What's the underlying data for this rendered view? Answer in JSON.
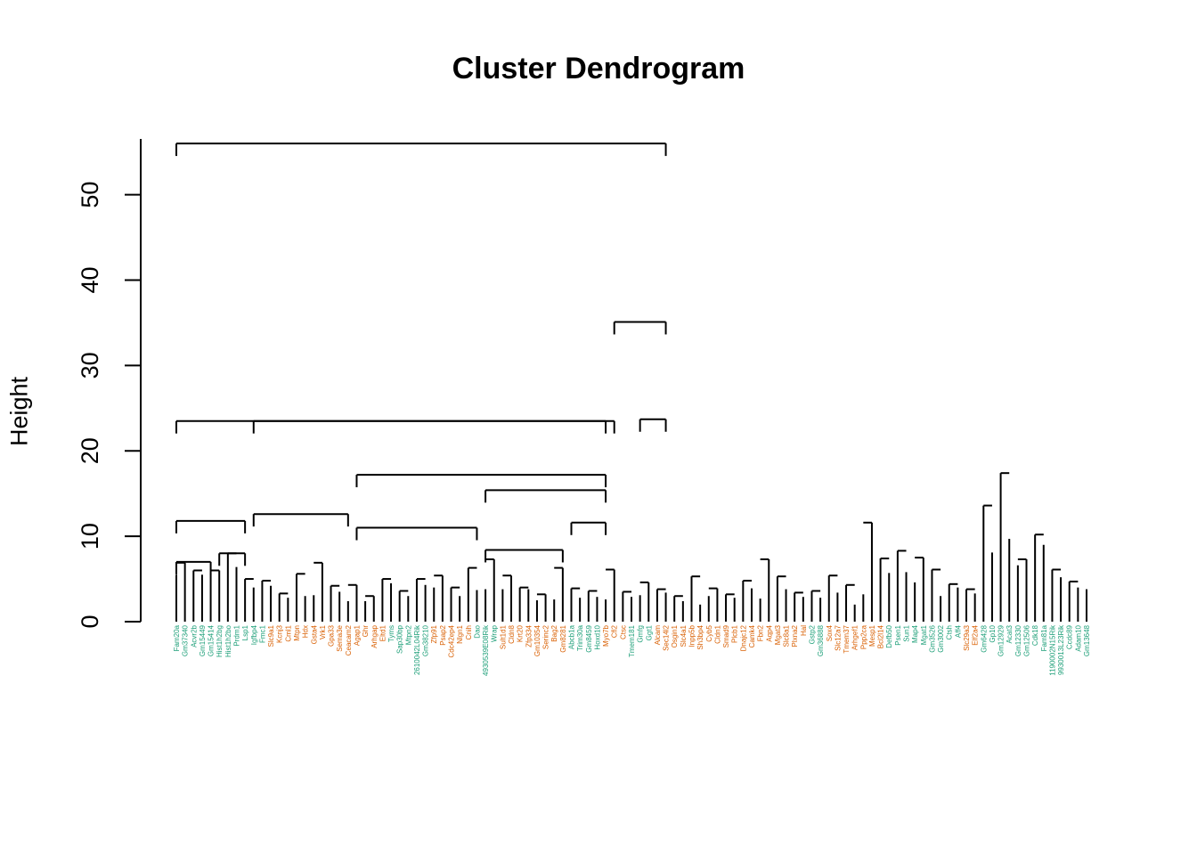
{
  "chart_data": {
    "type": "dendrogram",
    "title": "Cluster Dendrogram",
    "ylabel": "Height",
    "ylim": [
      0,
      56
    ],
    "yticks": [
      0,
      10,
      20,
      30,
      40,
      50
    ],
    "colors": {
      "teal": "#1b9e77",
      "orange": "#d95f02",
      "line": "#000000"
    },
    "merges": [
      {
        "from": [
          1,
          9
        ],
        "height": 11.8
      },
      {
        "from": [
          1,
          5
        ],
        "height": 7.0
      },
      {
        "from": [
          6,
          9
        ],
        "height": 8.0
      },
      {
        "from": [
          10,
          51
        ],
        "height": 23.5
      },
      {
        "from": [
          10,
          21
        ],
        "height": 12.6
      },
      {
        "from": [
          22,
          51
        ],
        "height": 17.2
      },
      {
        "from": [
          22,
          36
        ],
        "height": 11.0
      },
      {
        "from": [
          37,
          51
        ],
        "height": 15.4
      },
      {
        "from": [
          37,
          46
        ],
        "height": 8.4
      },
      {
        "from": [
          47,
          51
        ],
        "height": 11.6
      },
      {
        "from": [
          1,
          52
        ],
        "height": 23.5
      },
      {
        "from": [
          52,
          58
        ],
        "height": 35.1
      },
      {
        "from": [
          55,
          58
        ],
        "height": 23.7
      },
      {
        "from": [
          1,
          58
        ],
        "height": 56.0
      }
    ],
    "leaves": [
      {
        "label": "Fam20a",
        "group": "teal",
        "h": 5.5
      },
      {
        "label": "Gm37340",
        "group": "teal",
        "h": 6.9
      },
      {
        "label": "Acvr2b",
        "group": "teal",
        "h": 6.0
      },
      {
        "label": "Gm15449",
        "group": "teal",
        "h": 5.5
      },
      {
        "label": "Gm15414",
        "group": "teal",
        "h": 5.6
      },
      {
        "label": "Hist1h2bg",
        "group": "teal",
        "h": 6.0
      },
      {
        "label": "Hist1h2bo",
        "group": "teal",
        "h": 8.0
      },
      {
        "label": "Prdm1",
        "group": "teal",
        "h": 6.4
      },
      {
        "label": "Lsp1",
        "group": "teal",
        "h": 5.0
      },
      {
        "label": "Igfbp4",
        "group": "teal",
        "h": 4.0
      },
      {
        "label": "Fmc1",
        "group": "teal",
        "h": 4.8
      },
      {
        "label": "Slc9a1",
        "group": "orange",
        "h": 4.2
      },
      {
        "label": "Kcnj3",
        "group": "orange",
        "h": 3.3
      },
      {
        "label": "Cml1",
        "group": "orange",
        "h": 2.8
      },
      {
        "label": "Mtpn",
        "group": "orange",
        "h": 5.6
      },
      {
        "label": "Hdx",
        "group": "orange",
        "h": 3.0
      },
      {
        "label": "Gsta4",
        "group": "orange",
        "h": 3.1
      },
      {
        "label": "Vrk1",
        "group": "orange",
        "h": 6.9
      },
      {
        "label": "Gpa33",
        "group": "orange",
        "h": 4.2
      },
      {
        "label": "Sema3e",
        "group": "orange",
        "h": 3.5
      },
      {
        "label": "Ceacam2",
        "group": "orange",
        "h": 2.4
      },
      {
        "label": "Agap1",
        "group": "orange",
        "h": 4.3
      },
      {
        "label": "Ghr",
        "group": "orange",
        "h": 2.4
      },
      {
        "label": "Arhgap",
        "group": "orange",
        "h": 3.0
      },
      {
        "label": "Eltd1",
        "group": "orange",
        "h": 5.0
      },
      {
        "label": "Tyms",
        "group": "teal",
        "h": 4.5
      },
      {
        "label": "Sap30bp",
        "group": "teal",
        "h": 3.6
      },
      {
        "label": "Mtpn2",
        "group": "teal",
        "h": 3.0
      },
      {
        "label": "2610042L04Rik",
        "group": "teal",
        "h": 5.0
      },
      {
        "label": "Gm38210",
        "group": "teal",
        "h": 4.3
      },
      {
        "label": "Zfp91",
        "group": "orange",
        "h": 4.0
      },
      {
        "label": "Psap2",
        "group": "orange",
        "h": 5.4
      },
      {
        "label": "Cdc42ep4",
        "group": "orange",
        "h": 4.0
      },
      {
        "label": "Nlgn1",
        "group": "orange",
        "h": 3.0
      },
      {
        "label": "Cnih",
        "group": "orange",
        "h": 6.3
      },
      {
        "label": "Dao",
        "group": "teal",
        "h": 3.7
      },
      {
        "label": "4930539E08Rik",
        "group": "teal",
        "h": 3.8
      },
      {
        "label": "Wrap",
        "group": "teal",
        "h": 7.3
      },
      {
        "label": "Sult1d1",
        "group": "orange",
        "h": 3.8
      },
      {
        "label": "Cldn8",
        "group": "orange",
        "h": 5.4
      },
      {
        "label": "Krt20",
        "group": "orange",
        "h": 4.0
      },
      {
        "label": "Zfp334",
        "group": "orange",
        "h": 3.8
      },
      {
        "label": "Gm10354",
        "group": "orange",
        "h": 2.5
      },
      {
        "label": "Serinc2",
        "group": "orange",
        "h": 3.2
      },
      {
        "label": "Bag2",
        "group": "orange",
        "h": 2.6
      },
      {
        "label": "Gm8281",
        "group": "orange",
        "h": 6.3
      },
      {
        "label": "Abcb1a",
        "group": "teal",
        "h": 3.9
      },
      {
        "label": "Trim30a",
        "group": "teal",
        "h": 2.8
      },
      {
        "label": "Gm8459",
        "group": "teal",
        "h": 3.6
      },
      {
        "label": "Hoxd10",
        "group": "teal",
        "h": 2.9
      },
      {
        "label": "Myo7b",
        "group": "orange",
        "h": 2.6
      },
      {
        "label": "Cfl2",
        "group": "orange",
        "h": 6.1
      },
      {
        "label": "Ctsc",
        "group": "orange",
        "h": 3.5
      },
      {
        "label": "Tmem181",
        "group": "teal",
        "h": 2.9
      },
      {
        "label": "Gmfg",
        "group": "teal",
        "h": 3.1
      },
      {
        "label": "Ggt1",
        "group": "teal",
        "h": 4.6
      },
      {
        "label": "Alcam",
        "group": "orange",
        "h": 3.8
      },
      {
        "label": "Sec14l2",
        "group": "orange",
        "h": 3.4
      },
      {
        "label": "Osgin1",
        "group": "orange",
        "h": 3.0
      },
      {
        "label": "Slc4a1",
        "group": "orange",
        "h": 2.4
      },
      {
        "label": "Inpp5b",
        "group": "orange",
        "h": 5.3
      },
      {
        "label": "Sh3bp4",
        "group": "orange",
        "h": 2.0
      },
      {
        "label": "Cyb5",
        "group": "orange",
        "h": 3.0
      },
      {
        "label": "Cldn1",
        "group": "orange",
        "h": 3.9
      },
      {
        "label": "Smad9",
        "group": "orange",
        "h": 3.2
      },
      {
        "label": "Plcb1",
        "group": "orange",
        "h": 2.8
      },
      {
        "label": "Dnajc12",
        "group": "orange",
        "h": 4.8
      },
      {
        "label": "Camk4",
        "group": "orange",
        "h": 3.9
      },
      {
        "label": "Fbn2",
        "group": "orange",
        "h": 2.7
      },
      {
        "label": "Aqp4",
        "group": "orange",
        "h": 7.3
      },
      {
        "label": "Mgat3",
        "group": "orange",
        "h": 5.3
      },
      {
        "label": "Slc8a1",
        "group": "orange",
        "h": 3.8
      },
      {
        "label": "Plxna2",
        "group": "orange",
        "h": 3.4
      },
      {
        "label": "Hal",
        "group": "orange",
        "h": 2.9
      },
      {
        "label": "Gstp2",
        "group": "teal",
        "h": 3.6
      },
      {
        "label": "Gm36888",
        "group": "teal",
        "h": 2.8
      },
      {
        "label": "Sox4",
        "group": "orange",
        "h": 5.4
      },
      {
        "label": "Slc12a7",
        "group": "orange",
        "h": 3.4
      },
      {
        "label": "Tmem37",
        "group": "orange",
        "h": 4.3
      },
      {
        "label": "Arhgef1",
        "group": "orange",
        "h": 2.0
      },
      {
        "label": "Ppp2ca",
        "group": "orange",
        "h": 3.2
      },
      {
        "label": "Mesp1",
        "group": "orange",
        "h": 11.6
      },
      {
        "label": "Bcl2l14",
        "group": "orange",
        "h": 7.4
      },
      {
        "label": "Defb50",
        "group": "teal",
        "h": 5.7
      },
      {
        "label": "Psen1",
        "group": "teal",
        "h": 8.3
      },
      {
        "label": "Sun1",
        "group": "teal",
        "h": 5.8
      },
      {
        "label": "Map4",
        "group": "teal",
        "h": 4.6
      },
      {
        "label": "Mgat1",
        "group": "teal",
        "h": 7.5
      },
      {
        "label": "Gm3526",
        "group": "teal",
        "h": 6.1
      },
      {
        "label": "Gm3002",
        "group": "teal",
        "h": 3.0
      },
      {
        "label": "Ctsh",
        "group": "teal",
        "h": 4.4
      },
      {
        "label": "Aff4",
        "group": "teal",
        "h": 4.0
      },
      {
        "label": "Slc29a3",
        "group": "orange",
        "h": 3.8
      },
      {
        "label": "Elf2a4",
        "group": "orange",
        "h": 3.3
      },
      {
        "label": "Gm6428",
        "group": "teal",
        "h": 13.6
      },
      {
        "label": "Gp10",
        "group": "teal",
        "h": 8.1
      },
      {
        "label": "Gm12929",
        "group": "teal",
        "h": 17.4
      },
      {
        "label": "Acat3",
        "group": "teal",
        "h": 9.7
      },
      {
        "label": "Gm12330",
        "group": "teal",
        "h": 6.6
      },
      {
        "label": "Gm12506",
        "group": "teal",
        "h": 7.3
      },
      {
        "label": "Cdk18",
        "group": "teal",
        "h": 10.2
      },
      {
        "label": "Fam81a",
        "group": "teal",
        "h": 9.0
      },
      {
        "label": "1190002N15Rik",
        "group": "teal",
        "h": 6.1
      },
      {
        "label": "9930013L23Rik",
        "group": "teal",
        "h": 5.2
      },
      {
        "label": "Ccdc89",
        "group": "teal",
        "h": 4.7
      },
      {
        "label": "Adam10",
        "group": "teal",
        "h": 4.0
      },
      {
        "label": "Gm13648",
        "group": "teal",
        "h": 3.8
      }
    ]
  }
}
